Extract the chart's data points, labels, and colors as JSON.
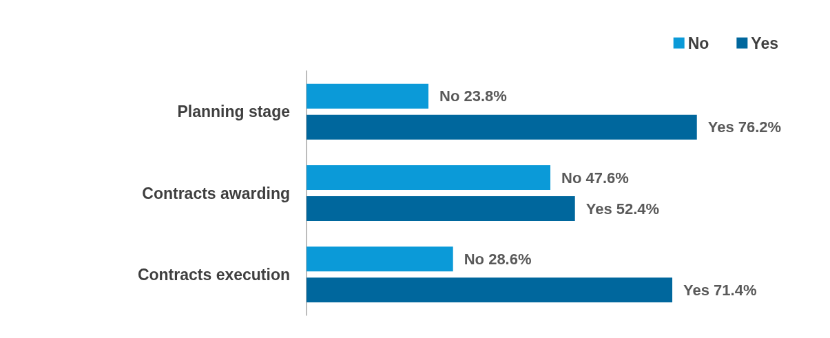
{
  "chart_data": {
    "type": "bar",
    "orientation": "horizontal",
    "categories": [
      "Planning stage",
      "Contracts awarding",
      "Contracts execution"
    ],
    "series": [
      {
        "name": "No",
        "color": "#0b9ad8",
        "values": [
          23.8,
          47.6,
          28.6
        ],
        "value_labels": [
          "No 23.8%",
          "No 47.6%",
          "No 28.6%"
        ]
      },
      {
        "name": "Yes",
        "color": "#00679d",
        "values": [
          76.2,
          52.4,
          71.4
        ],
        "value_labels": [
          "Yes 76.2%",
          "Yes 52.4%",
          "Yes 71.4%"
        ]
      }
    ],
    "tick_labels": "y",
    "legend": "top right"
  }
}
